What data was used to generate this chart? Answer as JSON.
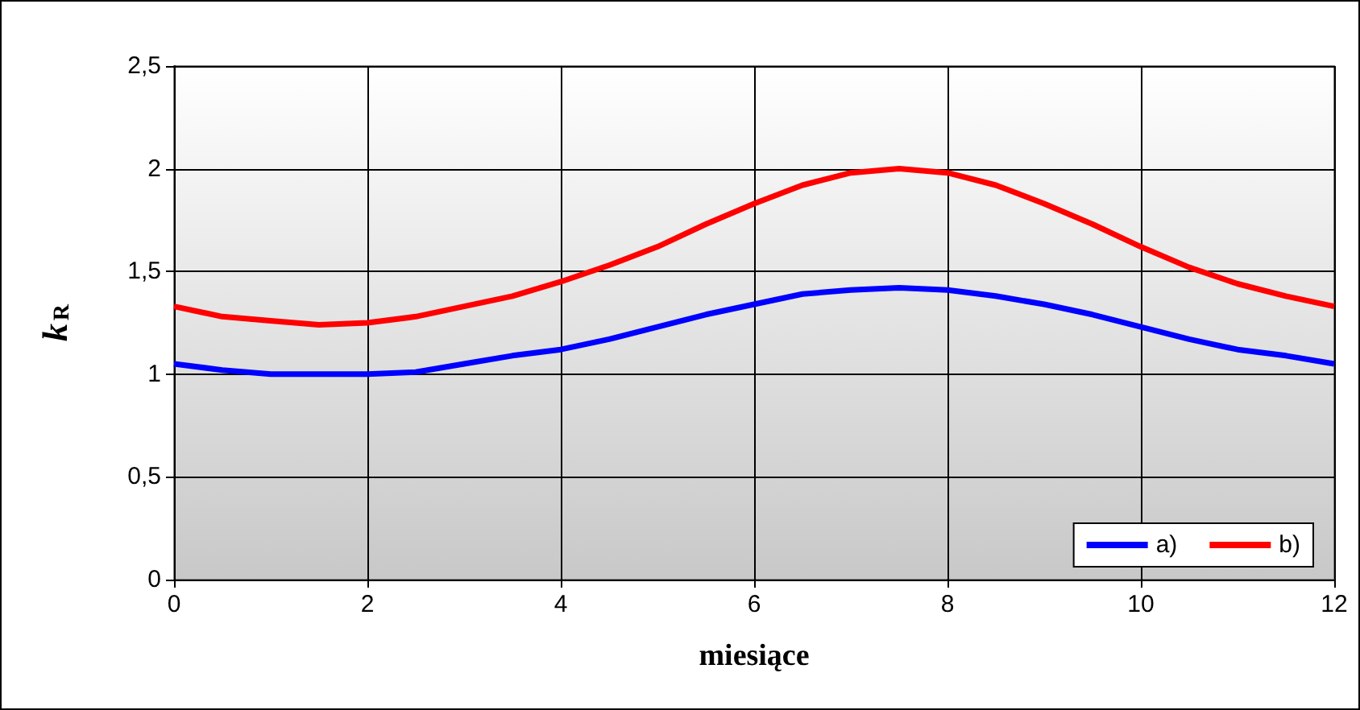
{
  "chart_data": {
    "type": "line",
    "xlabel": "miesiące",
    "ylabel": "k$_{R}$",
    "x": [
      0,
      0.5,
      1,
      1.5,
      2,
      2.5,
      3,
      3.5,
      4,
      4.5,
      5,
      5.5,
      6,
      6.5,
      7,
      7.5,
      8,
      8.5,
      9,
      9.5,
      10,
      10.5,
      11,
      11.5,
      12
    ],
    "series": [
      {
        "name": "a)",
        "color": "#0000ff",
        "values": [
          1.05,
          1.02,
          1.0,
          1.0,
          1.0,
          1.01,
          1.05,
          1.09,
          1.12,
          1.17,
          1.23,
          1.29,
          1.34,
          1.39,
          1.41,
          1.42,
          1.41,
          1.38,
          1.34,
          1.29,
          1.23,
          1.17,
          1.12,
          1.09,
          1.05
        ]
      },
      {
        "name": "b)",
        "color": "#ff0000",
        "values": [
          1.33,
          1.28,
          1.26,
          1.24,
          1.25,
          1.28,
          1.33,
          1.38,
          1.45,
          1.53,
          1.62,
          1.73,
          1.83,
          1.92,
          1.98,
          2.0,
          1.98,
          1.92,
          1.83,
          1.73,
          1.62,
          1.52,
          1.44,
          1.38,
          1.33
        ]
      }
    ],
    "xlim": [
      0,
      12
    ],
    "xticks": [
      0,
      2,
      4,
      6,
      8,
      10,
      12
    ],
    "ylim": [
      0,
      2.5
    ],
    "yticks": [
      0,
      {
        "value": 0.5,
        "label": "0,5"
      },
      1,
      {
        "value": 1.5,
        "label": "1,5"
      },
      2,
      {
        "value": 2.5,
        "label": "2,5"
      }
    ],
    "grid": true,
    "legend": "bottom right",
    "marker": "none",
    "line_style": "solid"
  }
}
